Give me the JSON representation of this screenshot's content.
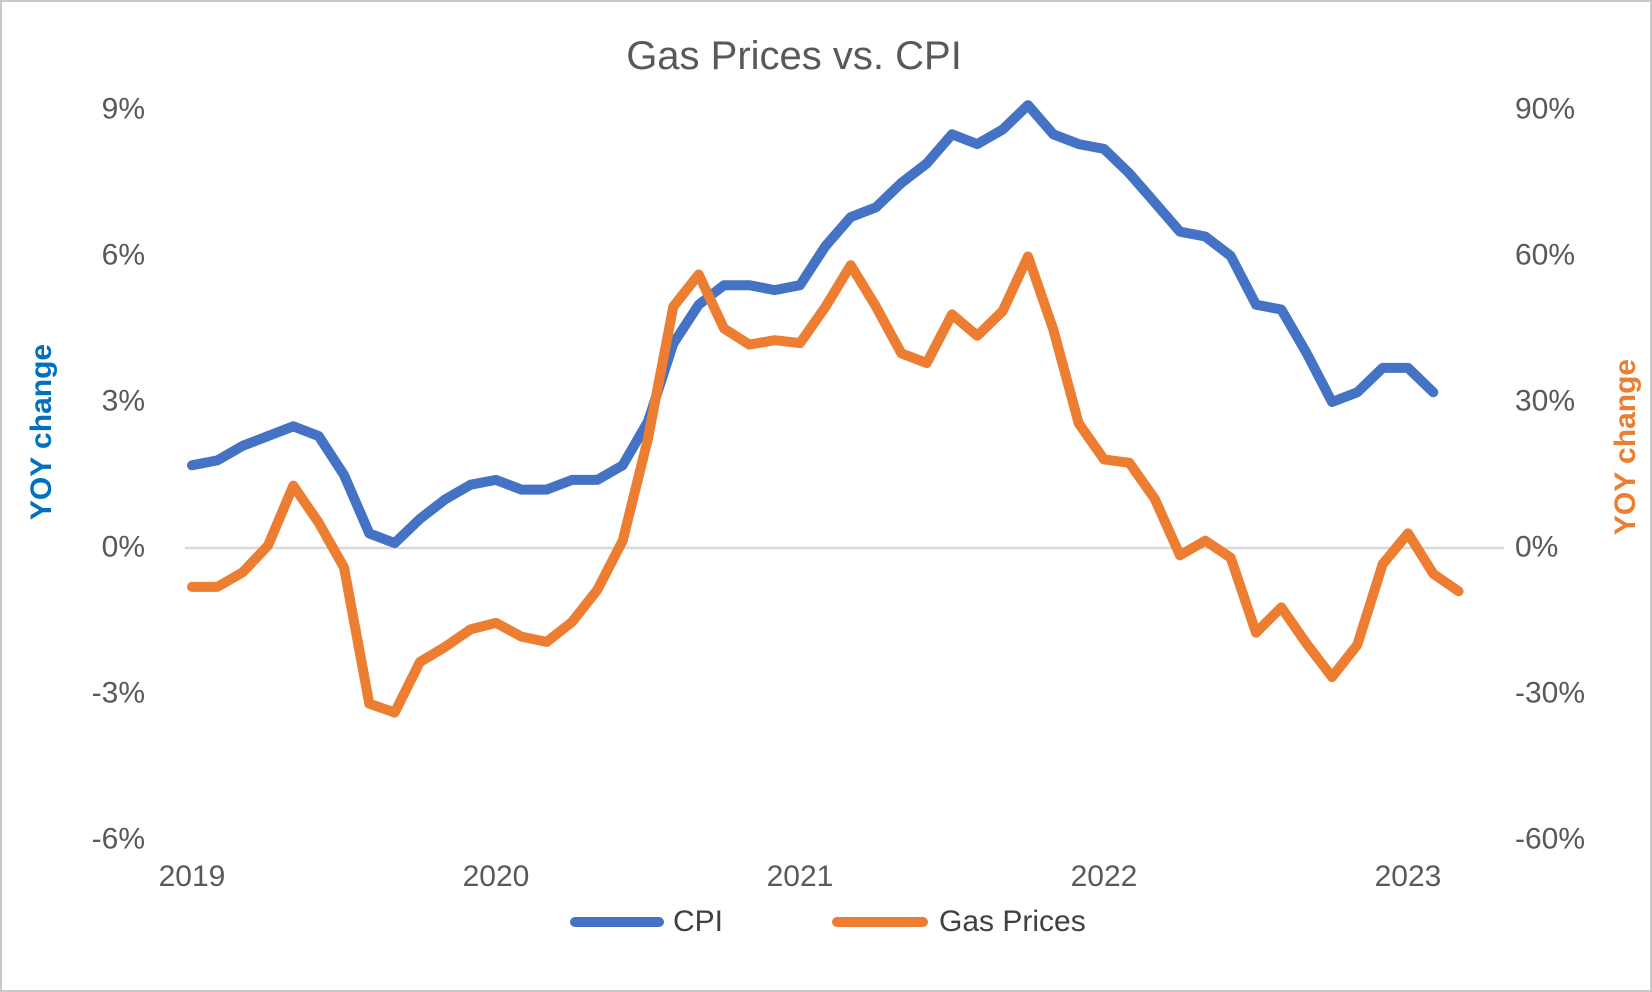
{
  "title": "Gas Prices vs. CPI",
  "legend": {
    "cpi_label": "CPI",
    "gas_label": "Gas Prices"
  },
  "colors": {
    "cpi_line": "#4472C4",
    "gas_line": "#ED7D31",
    "left_axis_title": "#0070C0",
    "right_axis_title": "#ED7D31",
    "text": "#595959",
    "zero_gridline": "#D9D9D9"
  },
  "chart_data": {
    "type": "line",
    "title": "Gas Prices vs. CPI",
    "x_tick_labels": [
      "2019",
      "2020",
      "2021",
      "2022",
      "2023"
    ],
    "categories": [
      "2019-01",
      "2019-02",
      "2019-03",
      "2019-04",
      "2019-05",
      "2019-06",
      "2019-07",
      "2019-08",
      "2019-09",
      "2019-10",
      "2019-11",
      "2019-12",
      "2020-01",
      "2020-02",
      "2020-03",
      "2020-04",
      "2020-05",
      "2020-06",
      "2020-07",
      "2020-08",
      "2020-09",
      "2020-10",
      "2020-11",
      "2020-12",
      "2021-01",
      "2021-02",
      "2021-03",
      "2021-04",
      "2021-05",
      "2021-06",
      "2021-07",
      "2021-08",
      "2021-09",
      "2021-10",
      "2021-11",
      "2021-12",
      "2022-01",
      "2022-02",
      "2022-03",
      "2022-04",
      "2022-05",
      "2022-06",
      "2022-07",
      "2022-08",
      "2022-09",
      "2022-10",
      "2022-11",
      "2022-12",
      "2023-01",
      "2023-02",
      "2023-03"
    ],
    "series": [
      {
        "name": "CPI",
        "axis": "left",
        "color": "#4472C4",
        "values": [
          1.7,
          1.8,
          2.1,
          2.3,
          2.5,
          2.3,
          1.5,
          0.3,
          0.1,
          0.6,
          1.0,
          1.3,
          1.4,
          1.2,
          1.2,
          1.4,
          1.4,
          1.7,
          2.6,
          4.2,
          5.0,
          5.4,
          5.4,
          5.3,
          5.4,
          6.2,
          6.8,
          7.0,
          7.5,
          7.9,
          8.5,
          8.3,
          8.6,
          9.1,
          8.5,
          8.3,
          8.2,
          7.7,
          7.1,
          6.5,
          6.4,
          6.0,
          5.0,
          4.9,
          4.0,
          3.0,
          3.2,
          3.7,
          3.7,
          3.2,
          null
        ]
      },
      {
        "name": "Gas Prices",
        "axis": "right",
        "color": "#ED7D31",
        "values": [
          -8.0,
          -8.0,
          -5.0,
          0.5,
          12.8,
          5.2,
          -4.0,
          -32.0,
          -33.8,
          -23.4,
          -20.3,
          -16.7,
          -15.4,
          -18.2,
          -19.3,
          -15.2,
          -8.6,
          1.5,
          22.5,
          49.6,
          56.2,
          45.1,
          41.8,
          42.7,
          42.1,
          49.5,
          58.1,
          49.6,
          40.0,
          38.0,
          48.0,
          43.6,
          48.7,
          59.9,
          44.9,
          25.6,
          18.2,
          17.5,
          10.1,
          -1.5,
          1.5,
          -2.0,
          -17.4,
          -12.2,
          -19.7,
          -26.5,
          -19.9,
          -3.3,
          3.0,
          -5.3,
          -8.9
        ]
      }
    ],
    "left_axis": {
      "title": "YOY change",
      "ticks": [
        "9%",
        "6%",
        "3%",
        "0%",
        "-3%",
        "-6%"
      ],
      "range": [
        -6,
        9
      ]
    },
    "right_axis": {
      "title": "YOY change",
      "ticks": [
        "90%",
        "60%",
        "30%",
        "0%",
        "-30%",
        "-60%"
      ],
      "range": [
        -60,
        90
      ]
    },
    "legend": {
      "position": "bottom",
      "entries": [
        "CPI",
        "Gas Prices"
      ]
    },
    "grid": "zero-line-only"
  }
}
